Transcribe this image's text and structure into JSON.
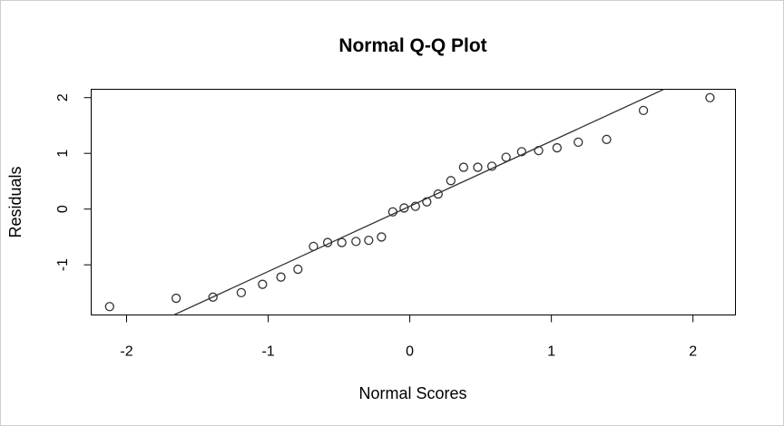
{
  "chart_data": {
    "type": "scatter",
    "title": "Normal Q-Q Plot",
    "xlabel": "Normal Scores",
    "ylabel": "Residuals",
    "xlim": [
      -2.25,
      2.3
    ],
    "ylim": [
      -1.9,
      2.15
    ],
    "x_ticks": [
      -2,
      -1,
      0,
      1,
      2
    ],
    "x_tick_labels": [
      "-2",
      "-1",
      "0",
      "1",
      "2"
    ],
    "y_ticks": [
      -1,
      0,
      1,
      2
    ],
    "y_tick_labels": [
      "-1",
      "0",
      "1",
      "2"
    ],
    "grid": false,
    "legend": "none",
    "reference_line": {
      "intercept": 0.05,
      "slope": 1.17
    },
    "points": {
      "x": [
        -2.12,
        -1.65,
        -1.39,
        -1.19,
        -1.04,
        -0.91,
        -0.79,
        -0.68,
        -0.58,
        -0.48,
        -0.38,
        -0.29,
        -0.2,
        -0.12,
        -0.04,
        0.04,
        0.12,
        0.2,
        0.29,
        0.38,
        0.48,
        0.58,
        0.68,
        0.79,
        0.91,
        1.04,
        1.19,
        1.39,
        1.65,
        2.12
      ],
      "y": [
        -1.75,
        -1.6,
        -1.58,
        -1.5,
        -1.35,
        -1.22,
        -1.08,
        -0.67,
        -0.6,
        -0.6,
        -0.58,
        -0.56,
        -0.5,
        -0.05,
        0.02,
        0.05,
        0.13,
        0.27,
        0.51,
        0.75,
        0.75,
        0.77,
        0.93,
        1.03,
        1.05,
        1.1,
        1.2,
        1.25,
        1.77,
        2.0
      ]
    }
  }
}
